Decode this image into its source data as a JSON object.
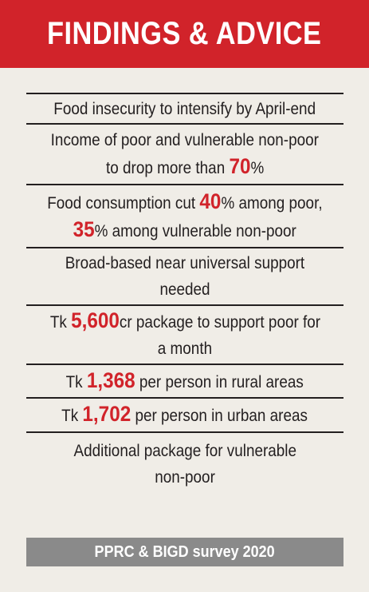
{
  "header": {
    "title": "FINDINGS & ADVICE"
  },
  "rows": [
    {
      "lines": [
        [
          {
            "t": "Food insecurity to intensify by April-end"
          }
        ]
      ]
    },
    {
      "lines": [
        [
          {
            "t": "Income of poor and vulnerable non-poor"
          }
        ],
        [
          {
            "t": "to drop more than "
          },
          {
            "t": "70",
            "hl": true
          },
          {
            "t": "%"
          }
        ]
      ]
    },
    {
      "lines": [
        [
          {
            "t": "Food consumption cut "
          },
          {
            "t": "40",
            "hl": true
          },
          {
            "t": "% among poor,"
          }
        ],
        [
          {
            "t": "35",
            "hl": true
          },
          {
            "t": "% among vulnerable non-poor"
          }
        ]
      ]
    },
    {
      "lines": [
        [
          {
            "t": "Broad-based near universal support"
          }
        ],
        [
          {
            "t": "needed"
          }
        ]
      ]
    },
    {
      "lines": [
        [
          {
            "t": "Tk "
          },
          {
            "t": "5,600",
            "hl": true
          },
          {
            "t": "cr package to support poor for"
          }
        ],
        [
          {
            "t": "a month"
          }
        ]
      ]
    },
    {
      "lines": [
        [
          {
            "t": "Tk "
          },
          {
            "t": "1,368",
            "hl": true
          },
          {
            "t": " per person in rural areas"
          }
        ]
      ]
    },
    {
      "lines": [
        [
          {
            "t": "Tk "
          },
          {
            "t": "1,702",
            "hl": true
          },
          {
            "t": " per person in urban areas"
          }
        ]
      ]
    },
    {
      "lines": [
        [
          {
            "t": "Additional package for vulnerable"
          }
        ],
        [
          {
            "t": "non-poor"
          }
        ]
      ]
    }
  ],
  "footer": {
    "source": "PPRC & BIGD survey 2020"
  },
  "colors": {
    "accent": "#d1232a",
    "background": "#f0ede7",
    "footer_bg": "#8a8a8a"
  }
}
